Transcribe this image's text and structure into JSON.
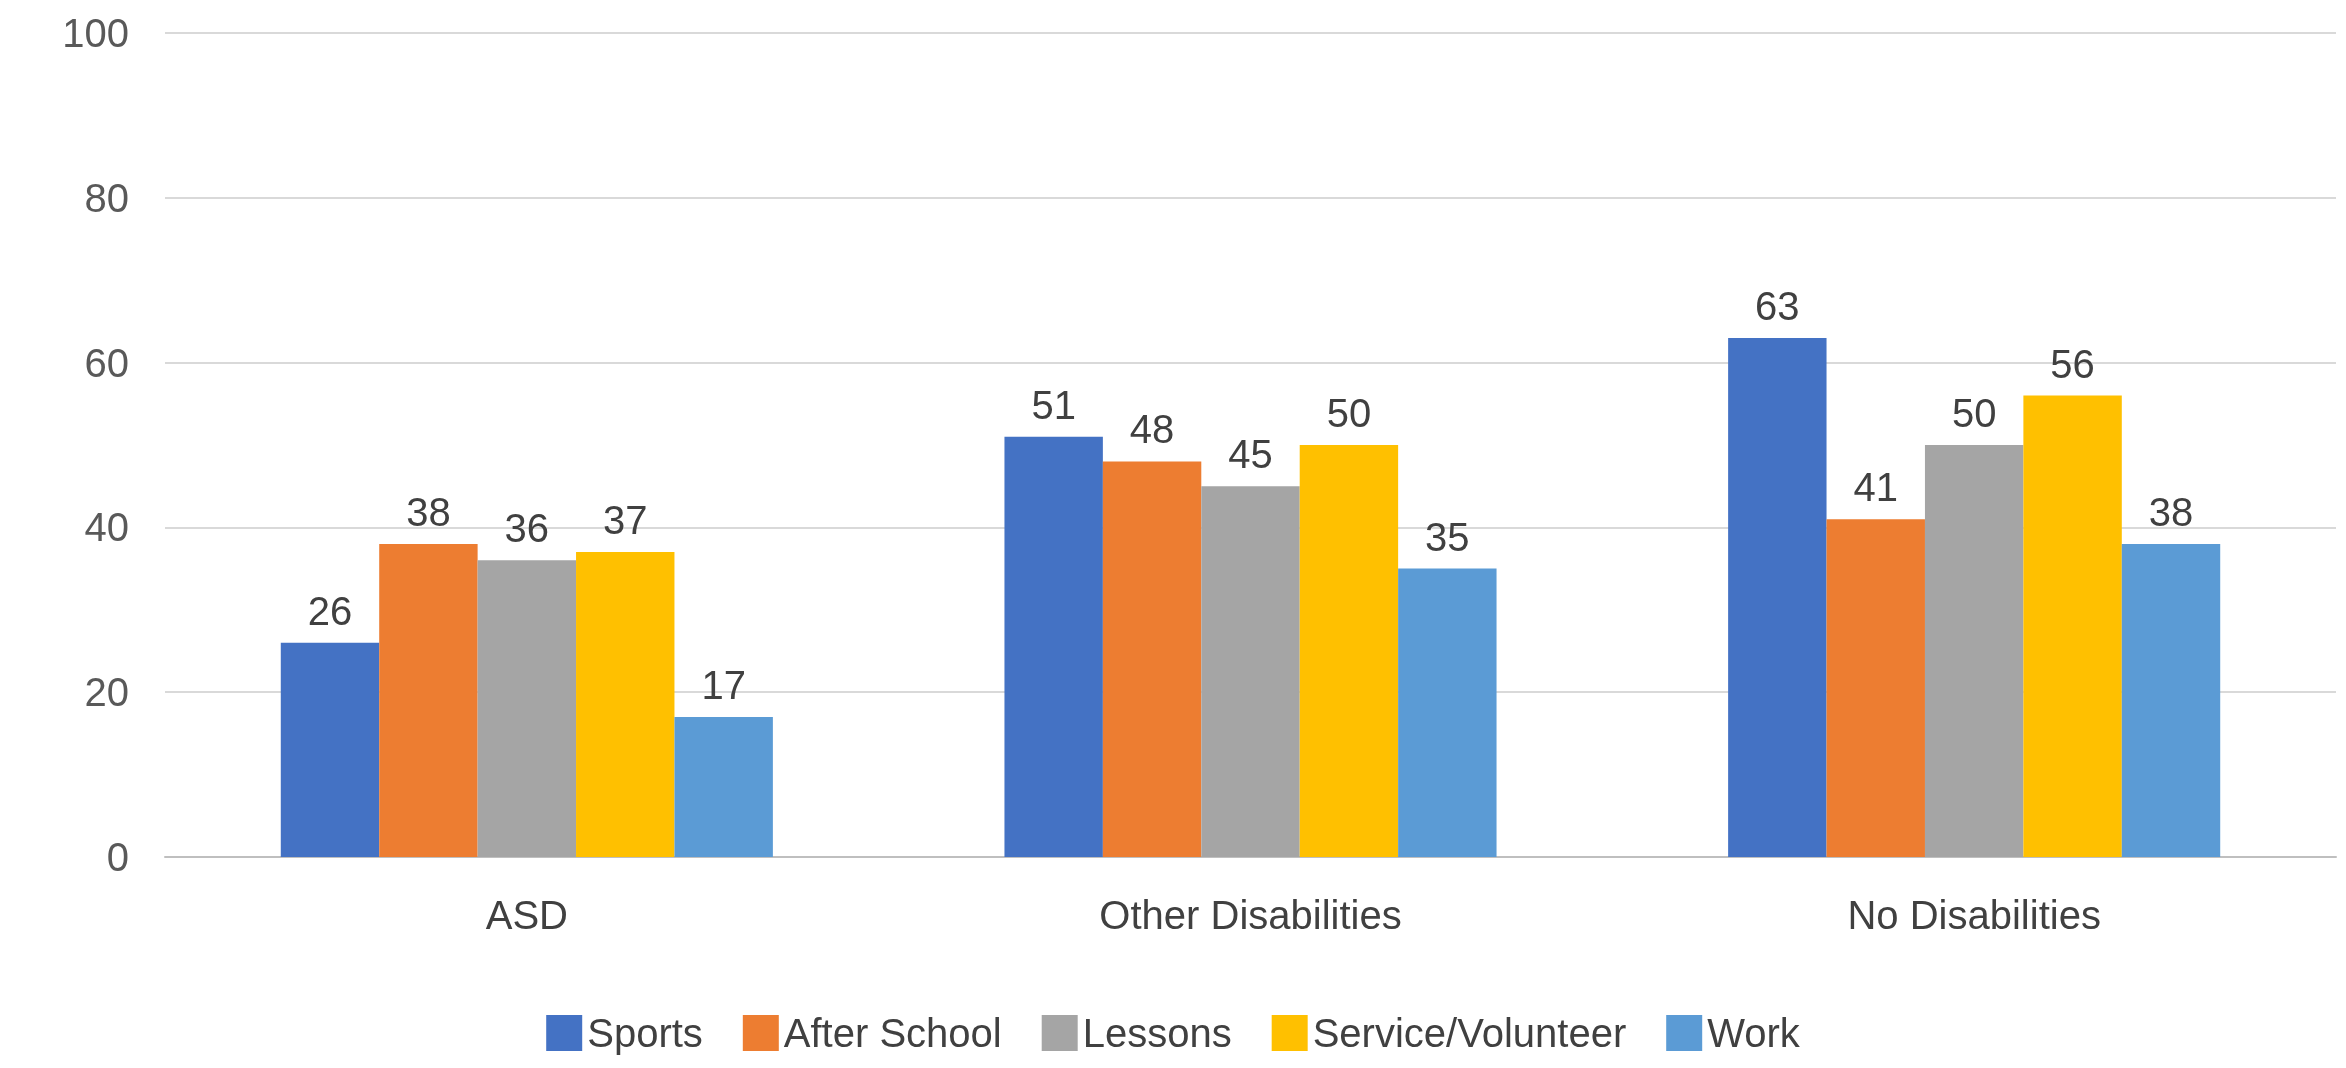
{
  "chart_data": {
    "type": "bar",
    "categories": [
      "ASD",
      "Other Disabilities",
      "No Disabilities"
    ],
    "series": [
      {
        "name": "Sports",
        "color": "#4472c4",
        "values": [
          26,
          51,
          63
        ]
      },
      {
        "name": "After School",
        "color": "#ed7d31",
        "values": [
          38,
          48,
          41
        ]
      },
      {
        "name": "Lessons",
        "color": "#a5a5a5",
        "values": [
          36,
          45,
          50
        ]
      },
      {
        "name": "Service/Volunteer",
        "color": "#ffc000",
        "values": [
          37,
          50,
          56
        ]
      },
      {
        "name": "Work",
        "color": "#5b9bd5",
        "values": [
          17,
          35,
          38
        ]
      }
    ],
    "ylim": [
      0,
      100
    ],
    "yticks": [
      0,
      20,
      40,
      60,
      80,
      100
    ],
    "grid": "y",
    "legend": "bottom",
    "data_labels": true
  }
}
